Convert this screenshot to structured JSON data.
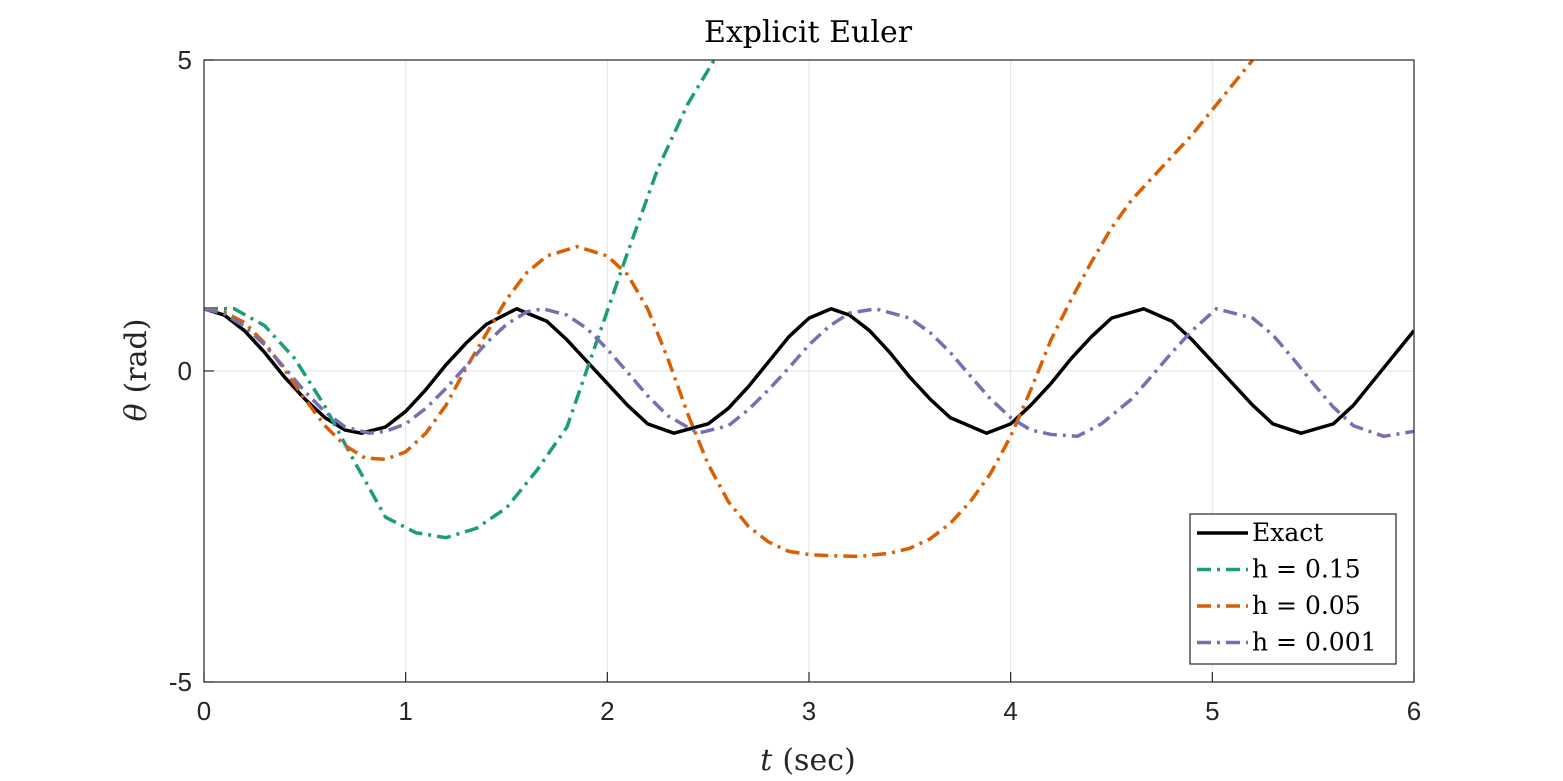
{
  "chart_data": {
    "type": "line",
    "title": "Explicit Euler",
    "xlabel_var": "t",
    "xlabel_unit": "(sec)",
    "ylabel_var": "θ",
    "ylabel_unit": "(rad)",
    "xlim": [
      0,
      6
    ],
    "ylim": [
      -5,
      5
    ],
    "xticks": [
      0,
      1,
      2,
      3,
      4,
      5,
      6
    ],
    "yticks": [
      -5,
      0,
      5
    ],
    "grid": true,
    "legend_position": "bottom-right",
    "series": [
      {
        "name": "Exact",
        "color": "#000000",
        "dash": "solid",
        "x": [
          0,
          0.1,
          0.2,
          0.3,
          0.4,
          0.5,
          0.6,
          0.7,
          0.78,
          0.9,
          1.0,
          1.1,
          1.2,
          1.3,
          1.4,
          1.55,
          1.7,
          1.8,
          1.9,
          2.0,
          2.1,
          2.2,
          2.33,
          2.5,
          2.6,
          2.7,
          2.8,
          2.9,
          3.0,
          3.11,
          3.2,
          3.3,
          3.4,
          3.5,
          3.6,
          3.7,
          3.88,
          4.0,
          4.1,
          4.2,
          4.3,
          4.4,
          4.5,
          4.66,
          4.8,
          4.9,
          5.0,
          5.1,
          5.2,
          5.3,
          5.44,
          5.6,
          5.7,
          5.8,
          5.9,
          6.0
        ],
        "y": [
          1.0,
          0.9,
          0.65,
          0.3,
          -0.1,
          -0.45,
          -0.75,
          -0.95,
          -1.0,
          -0.9,
          -0.65,
          -0.3,
          0.1,
          0.45,
          0.75,
          1.0,
          0.8,
          0.5,
          0.15,
          -0.2,
          -0.55,
          -0.85,
          -1.0,
          -0.85,
          -0.6,
          -0.25,
          0.15,
          0.55,
          0.85,
          1.0,
          0.9,
          0.65,
          0.3,
          -0.1,
          -0.45,
          -0.75,
          -1.0,
          -0.85,
          -0.55,
          -0.2,
          0.2,
          0.55,
          0.85,
          1.0,
          0.8,
          0.5,
          0.15,
          -0.2,
          -0.55,
          -0.85,
          -1.0,
          -0.85,
          -0.55,
          -0.15,
          0.25,
          0.65
        ]
      },
      {
        "name": "h = 0.15",
        "color": "#1b9e77",
        "dash": "dashdot",
        "x": [
          0,
          0.15,
          0.3,
          0.45,
          0.6,
          0.75,
          0.9,
          1.05,
          1.2,
          1.35,
          1.5,
          1.65,
          1.8,
          1.95,
          2.1,
          2.25,
          2.4,
          2.53
        ],
        "y": [
          1.0,
          1.0,
          0.73,
          0.2,
          -0.57,
          -1.48,
          -2.35,
          -2.6,
          -2.68,
          -2.53,
          -2.2,
          -1.6,
          -0.9,
          0.5,
          1.9,
          3.25,
          4.3,
          5.0
        ]
      },
      {
        "name": "h = 0.05",
        "color": "#d95f02",
        "dash": "dashdot",
        "x": [
          0,
          0.1,
          0.2,
          0.3,
          0.4,
          0.5,
          0.6,
          0.7,
          0.8,
          0.9,
          1.0,
          1.1,
          1.2,
          1.3,
          1.4,
          1.5,
          1.6,
          1.7,
          1.85,
          2.0,
          2.1,
          2.2,
          2.3,
          2.4,
          2.5,
          2.6,
          2.7,
          2.8,
          2.9,
          3.0,
          3.1,
          3.25,
          3.4,
          3.5,
          3.6,
          3.7,
          3.8,
          3.9,
          4.0,
          4.1,
          4.2,
          4.3,
          4.4,
          4.5,
          4.6,
          4.7,
          4.8,
          4.9,
          5.0,
          5.1,
          5.2
        ],
        "y": [
          1.0,
          0.95,
          0.78,
          0.45,
          0.02,
          -0.45,
          -0.88,
          -1.2,
          -1.4,
          -1.42,
          -1.3,
          -1.0,
          -0.55,
          0.05,
          0.6,
          1.15,
          1.58,
          1.85,
          2.0,
          1.85,
          1.55,
          1.0,
          0.2,
          -0.7,
          -1.5,
          -2.1,
          -2.5,
          -2.75,
          -2.9,
          -2.95,
          -2.97,
          -2.98,
          -2.93,
          -2.85,
          -2.7,
          -2.45,
          -2.1,
          -1.65,
          -1.05,
          -0.3,
          0.5,
          1.15,
          1.75,
          2.3,
          2.75,
          3.1,
          3.45,
          3.8,
          4.2,
          4.6,
          5.0
        ]
      },
      {
        "name": "h = 0.001",
        "color": "#7570b3",
        "dash": "dashdot",
        "x": [
          0,
          0.1,
          0.2,
          0.3,
          0.4,
          0.5,
          0.6,
          0.7,
          0.82,
          0.9,
          1.0,
          1.1,
          1.2,
          1.3,
          1.4,
          1.5,
          1.6,
          1.68,
          1.8,
          1.9,
          2.0,
          2.1,
          2.2,
          2.3,
          2.45,
          2.6,
          2.7,
          2.8,
          2.9,
          3.0,
          3.1,
          3.2,
          3.33,
          3.5,
          3.6,
          3.7,
          3.8,
          3.9,
          4.0,
          4.1,
          4.2,
          4.33,
          4.45,
          4.6,
          4.7,
          4.8,
          4.9,
          5.02,
          5.2,
          5.3,
          5.4,
          5.5,
          5.6,
          5.7,
          5.85,
          6.0
        ],
        "y": [
          1.0,
          0.92,
          0.72,
          0.42,
          0.05,
          -0.33,
          -0.66,
          -0.9,
          -1.0,
          -0.97,
          -0.85,
          -0.6,
          -0.28,
          0.08,
          0.45,
          0.75,
          0.95,
          1.0,
          0.9,
          0.68,
          0.35,
          -0.02,
          -0.4,
          -0.72,
          -1.0,
          -0.88,
          -0.62,
          -0.3,
          0.05,
          0.42,
          0.72,
          0.93,
          1.0,
          0.85,
          0.62,
          0.3,
          -0.08,
          -0.45,
          -0.75,
          -0.95,
          -1.02,
          -1.05,
          -0.85,
          -0.45,
          -0.08,
          0.3,
          0.65,
          1.0,
          0.85,
          0.58,
          0.2,
          -0.2,
          -0.58,
          -0.88,
          -1.05,
          -0.97
        ]
      }
    ]
  }
}
